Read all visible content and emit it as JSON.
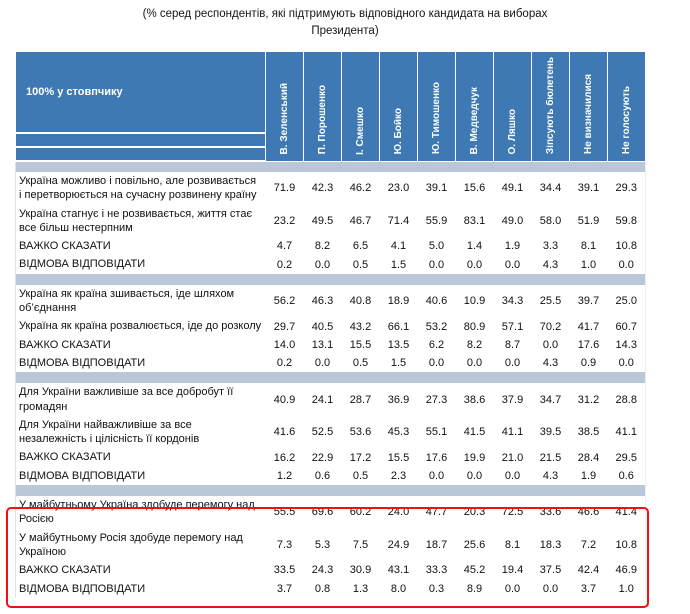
{
  "title": {
    "line1": "(% серед респондентів, які підтримують відповідного кандидата на виборах",
    "line2": "Президента)"
  },
  "colors": {
    "header_bg": "#3e79b4",
    "separator": "#b9c7d8",
    "highlight": "#ee1111"
  },
  "table": {
    "corner_label": "100% у стовпчику",
    "columns": [
      "В. Зеленський",
      "П. Порошенко",
      "І. Смешко",
      "Ю. Бойко",
      "Ю. Тимошенко",
      "В. Медведчук",
      "О. Ляшко",
      "Зіпсують бюлетень",
      "Не визначилися",
      "Не голосують"
    ],
    "sections": [
      {
        "rows": [
          {
            "label": "Україна можливо і повільно, але розвивається і перетворюється на сучасну розвинену країну",
            "values": [
              71.9,
              42.3,
              46.2,
              23.0,
              39.1,
              15.6,
              49.1,
              34.4,
              39.1,
              29.3
            ]
          },
          {
            "label": "Україна стагнує і не розвивається, життя стає все більш нестерпним",
            "values": [
              23.2,
              49.5,
              46.7,
              71.4,
              55.9,
              83.1,
              49.0,
              58.0,
              51.9,
              59.8
            ]
          },
          {
            "label": "ВАЖКО СКАЗАТИ",
            "values": [
              4.7,
              8.2,
              6.5,
              4.1,
              5.0,
              1.4,
              1.9,
              3.3,
              8.1,
              10.8
            ]
          },
          {
            "label": "ВІДМОВА ВІДПОВІДАТИ",
            "values": [
              0.2,
              0.0,
              0.5,
              1.5,
              0.0,
              0.0,
              0.0,
              4.3,
              1.0,
              0.0
            ]
          }
        ]
      },
      {
        "rows": [
          {
            "label": "Україна як країна зшивається, іде шляхом об’єднання",
            "values": [
              56.2,
              46.3,
              40.8,
              18.9,
              40.6,
              10.9,
              34.3,
              25.5,
              39.7,
              25.0
            ]
          },
          {
            "label": "Україна як країна розвалюється, іде до розколу",
            "values": [
              29.7,
              40.5,
              43.2,
              66.1,
              53.2,
              80.9,
              57.1,
              70.2,
              41.7,
              60.7
            ]
          },
          {
            "label": "ВАЖКО СКАЗАТИ",
            "values": [
              14.0,
              13.1,
              15.5,
              13.5,
              6.2,
              8.2,
              8.7,
              0.0,
              17.6,
              14.3
            ]
          },
          {
            "label": "ВІДМОВА ВІДПОВІДАТИ",
            "values": [
              0.2,
              0.0,
              0.5,
              1.5,
              0.0,
              0.0,
              0.0,
              4.3,
              0.9,
              0.0
            ]
          }
        ]
      },
      {
        "rows": [
          {
            "label": "Для України важливіше за все добробут її громадян",
            "values": [
              40.9,
              24.1,
              28.7,
              36.9,
              27.3,
              38.6,
              37.9,
              34.7,
              31.2,
              28.8
            ]
          },
          {
            "label": "Для України найважливіше за все незалежність і цілісність її кордонів",
            "values": [
              41.6,
              52.5,
              53.6,
              45.3,
              55.1,
              41.5,
              41.1,
              39.5,
              38.5,
              41.1
            ]
          },
          {
            "label": "ВАЖКО СКАЗАТИ",
            "values": [
              16.2,
              22.9,
              17.2,
              15.5,
              17.6,
              19.9,
              21.0,
              21.5,
              28.4,
              29.5
            ]
          },
          {
            "label": "ВІДМОВА ВІДПОВІДАТИ",
            "values": [
              1.2,
              0.6,
              0.5,
              2.3,
              0.0,
              0.0,
              0.0,
              4.3,
              1.9,
              0.6
            ]
          }
        ]
      },
      {
        "highlighted": true,
        "rows": [
          {
            "label": "У майбутньому Україна здобуде перемогу над Росією",
            "values": [
              55.5,
              69.6,
              60.2,
              24.0,
              47.7,
              20.3,
              72.5,
              33.6,
              46.6,
              41.4
            ]
          },
          {
            "label": "У майбутньому Росія здобуде перемогу над Україною",
            "values": [
              7.3,
              5.3,
              7.5,
              24.9,
              18.7,
              25.6,
              8.1,
              18.3,
              7.2,
              10.8
            ]
          },
          {
            "label": "ВАЖКО СКАЗАТИ",
            "values": [
              33.5,
              24.3,
              30.9,
              43.1,
              33.3,
              45.2,
              19.4,
              37.5,
              42.4,
              46.9
            ]
          },
          {
            "label": "ВІДМОВА ВІДПОВІДАТИ",
            "values": [
              3.7,
              0.8,
              1.3,
              8.0,
              0.3,
              8.9,
              0.0,
              0.0,
              3.7,
              1.0
            ]
          }
        ]
      }
    ]
  }
}
